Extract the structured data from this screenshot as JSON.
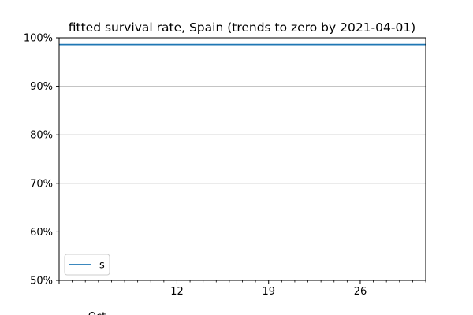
{
  "chart_data": {
    "type": "line",
    "title": "fitted survival rate, Spain (trends to zero by 2021-04-01)",
    "xlabel": "",
    "ylabel": "",
    "y_tick_format": "percent",
    "ylim": [
      0.5,
      1.0
    ],
    "y_ticks": [
      0.5,
      0.6,
      0.7,
      0.8,
      0.9,
      1.0
    ],
    "y_tick_labels": [
      "50%",
      "60%",
      "70%",
      "80%",
      "90%",
      "100%"
    ],
    "xlim": [
      "2020-10-03",
      "2020-10-31"
    ],
    "x_major_ticks": [
      "2020-10-12",
      "2020-10-19",
      "2020-10-26"
    ],
    "x_major_labels": [
      "12",
      "19",
      "26"
    ],
    "x_month_label": "Oct",
    "x_minor_ticks": [
      "2020-10-03",
      "2020-10-04",
      "2020-10-05",
      "2020-10-06",
      "2020-10-07",
      "2020-10-08",
      "2020-10-09",
      "2020-10-10",
      "2020-10-11",
      "2020-10-13",
      "2020-10-14",
      "2020-10-15",
      "2020-10-16",
      "2020-10-17",
      "2020-10-18",
      "2020-10-20",
      "2020-10-21",
      "2020-10-22",
      "2020-10-23",
      "2020-10-24",
      "2020-10-25",
      "2020-10-27",
      "2020-10-28",
      "2020-10-29",
      "2020-10-30",
      "2020-10-31"
    ],
    "grid": "y-major",
    "legend_placement": "lower-left",
    "series": [
      {
        "name": "s",
        "color": "#1f77b4",
        "x": [
          "2020-10-03",
          "2020-10-31"
        ],
        "values": [
          0.986,
          0.986
        ]
      }
    ]
  }
}
